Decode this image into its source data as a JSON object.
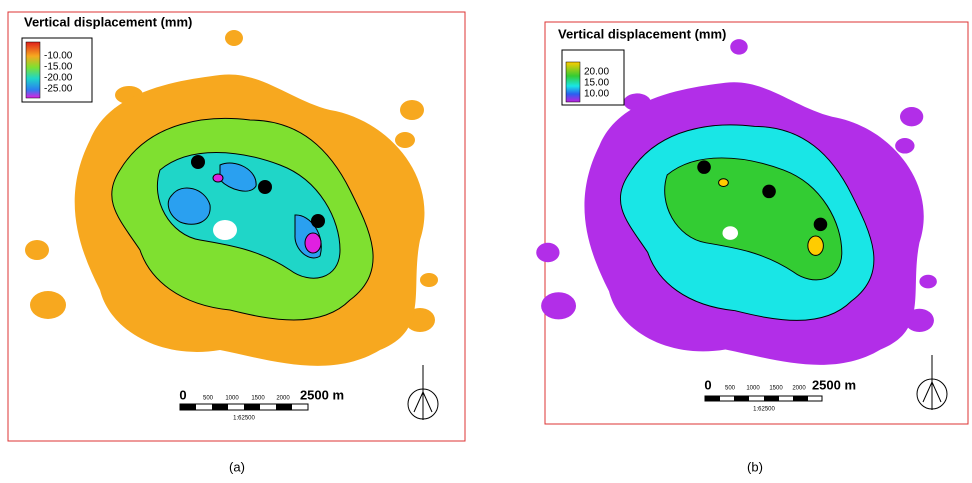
{
  "panels": [
    {
      "title": "Vertical displacement (mm)",
      "legend": [
        "-10.00",
        "-15.00",
        "-20.00",
        "-25.00"
      ],
      "scale": {
        "ticks": [
          "0",
          "500",
          "1000",
          "1500",
          "2000",
          "2500 m"
        ],
        "ratio": "1:62500"
      },
      "label": "(a)"
    },
    {
      "title": "Vertical displacement (mm)",
      "legend": [
        "20.00",
        "15.00",
        "10.00"
      ],
      "scale": {
        "ticks": [
          "0",
          "500",
          "1000",
          "1500",
          "2000",
          "2500 m"
        ],
        "ratio": "1:62500"
      },
      "label": "(b)"
    }
  ]
}
